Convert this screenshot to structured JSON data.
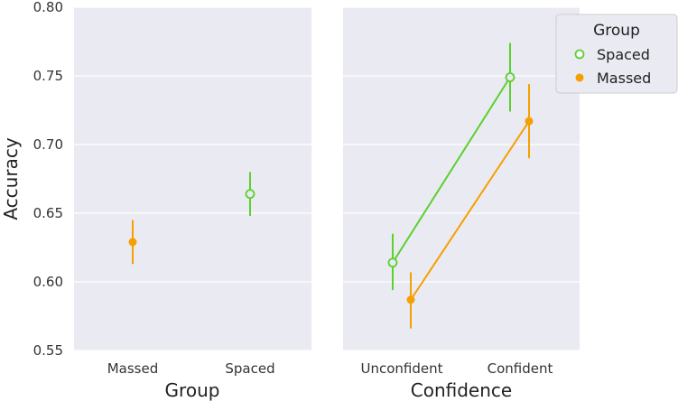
{
  "chart_data": [
    {
      "type": "scatter",
      "style": "pointplot with error bars",
      "xlabel": "Group",
      "ylabel": "Accuracy",
      "categories": [
        "Massed",
        "Spaced"
      ],
      "ylim": [
        0.55,
        0.8
      ],
      "yticks": [
        "0.55",
        "0.60",
        "0.65",
        "0.70",
        "0.75",
        "0.80"
      ],
      "grid": true,
      "series": [
        {
          "name": "Massed",
          "color": "#F5A000",
          "marker": "filled-circle",
          "points": [
            {
              "x": "Massed",
              "y": 0.629,
              "ci": [
                0.613,
                0.645
              ]
            }
          ]
        },
        {
          "name": "Spaced",
          "color": "#5BD12C",
          "marker": "open-circle",
          "points": [
            {
              "x": "Spaced",
              "y": 0.664,
              "ci": [
                0.648,
                0.68
              ]
            }
          ]
        }
      ]
    },
    {
      "type": "line",
      "style": "pointplot with error bars",
      "xlabel": "Confidence",
      "categories": [
        "Unconfident",
        "Confident"
      ],
      "ylim": [
        0.55,
        0.8
      ],
      "grid": true,
      "legend": {
        "title": "Group",
        "position": "top-right"
      },
      "series": [
        {
          "name": "Spaced",
          "color": "#5BD12C",
          "marker": "open-circle",
          "values": [
            0.614,
            0.749
          ],
          "ci": [
            [
              0.594,
              0.635
            ],
            [
              0.724,
              0.774
            ]
          ]
        },
        {
          "name": "Massed",
          "color": "#F5A000",
          "marker": "filled-circle",
          "values": [
            0.587,
            0.717
          ],
          "ci": [
            [
              0.566,
              0.607
            ],
            [
              0.69,
              0.744
            ]
          ]
        }
      ]
    }
  ]
}
